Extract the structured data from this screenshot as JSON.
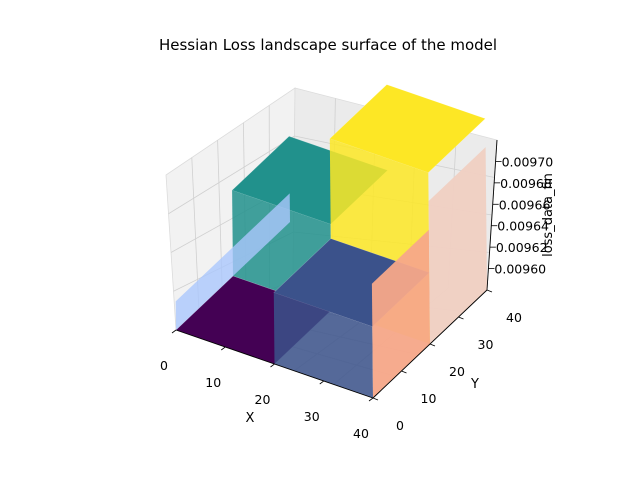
{
  "chart_data": {
    "type": "surface",
    "title": "Hessian Loss landscape surface of the model",
    "xlabel": "X",
    "ylabel": "Y",
    "zlabel": "loss_data_fin",
    "x_ticks": [
      "0",
      "10",
      "20",
      "30",
      "40"
    ],
    "y_ticks": [
      "0",
      "10",
      "20",
      "30",
      "40"
    ],
    "z_ticks": [
      "0.00960",
      "0.00962",
      "0.00964",
      "0.00966",
      "0.00968",
      "0.00970"
    ],
    "xlim": [
      0,
      40
    ],
    "ylim": [
      0,
      40
    ],
    "zlim": [
      0.00958,
      0.00972
    ],
    "grid": true,
    "surfaces": [
      {
        "colormap": "viridis",
        "x_steps": [
          0,
          10,
          20,
          30,
          40
        ],
        "y_steps": [
          0,
          10,
          20,
          30,
          40
        ],
        "description_levels": [
          {
            "x_range": [
              0,
              20
            ],
            "y_range": [
              0,
              20
            ],
            "z": 0.00958
          },
          {
            "x_range": [
              0,
              20
            ],
            "y_range": [
              20,
              40
            ],
            "z": 0.00964
          },
          {
            "x_range": [
              20,
              40
            ],
            "y_range": [
              0,
              20
            ],
            "z": 0.00963
          },
          {
            "x_range": [
              20,
              40
            ],
            "y_range": [
              20,
              40
            ],
            "z": 0.0097
          }
        ]
      },
      {
        "colormap": "coolwarm",
        "description_levels": [
          {
            "x": 0,
            "y_range": [
              0,
              40
            ],
            "z": 0.0096
          },
          {
            "x": 40,
            "y_range": [
              0,
              20
            ],
            "z": 0.00955
          },
          {
            "x": 40,
            "y_range": [
              20,
              40
            ],
            "z": 0.00965
          }
        ]
      }
    ]
  }
}
